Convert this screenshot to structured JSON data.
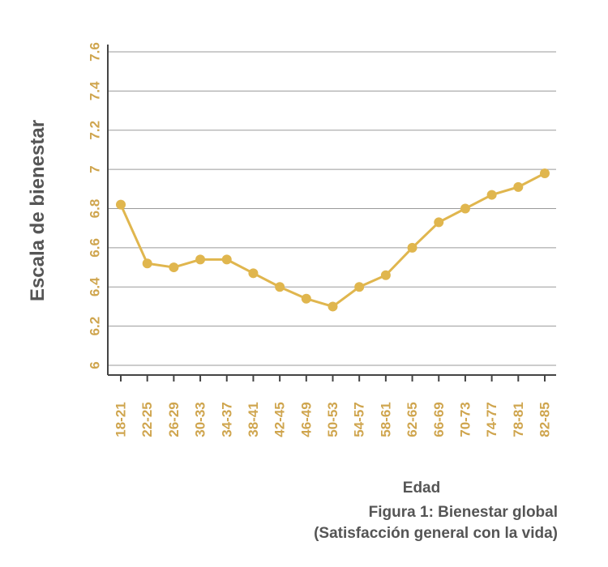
{
  "chart_data": {
    "type": "line",
    "xlabel": "Edad",
    "ylabel": "Escala de bienestar",
    "caption_line1": "Figura 1: Bienestar global",
    "caption_line2": "(Satisfacción general con la vida)",
    "categories": [
      "18-21",
      "22-25",
      "26-29",
      "30-33",
      "34-37",
      "38-41",
      "42-45",
      "46-49",
      "50-53",
      "54-57",
      "58-61",
      "62-65",
      "66-69",
      "70-73",
      "74-77",
      "78-81",
      "82-85"
    ],
    "series": [
      {
        "values": [
          6.82,
          6.52,
          6.5,
          6.54,
          6.54,
          6.47,
          6.4,
          6.34,
          6.3,
          6.4,
          6.46,
          6.6,
          6.73,
          6.8,
          6.87,
          6.91,
          6.98
        ]
      }
    ],
    "ylim": [
      6,
      7.6
    ],
    "yticks": [
      "6",
      "6.2",
      "6.4",
      "6.6",
      "6.8",
      "7",
      "7.2",
      "7.4",
      "7.6"
    ],
    "grid": true,
    "colors": {
      "line": "#e0b64e",
      "tick_label": "#cfa54e",
      "axis": "#444444",
      "grid": "#9a9a9a",
      "text": "#555555"
    }
  }
}
